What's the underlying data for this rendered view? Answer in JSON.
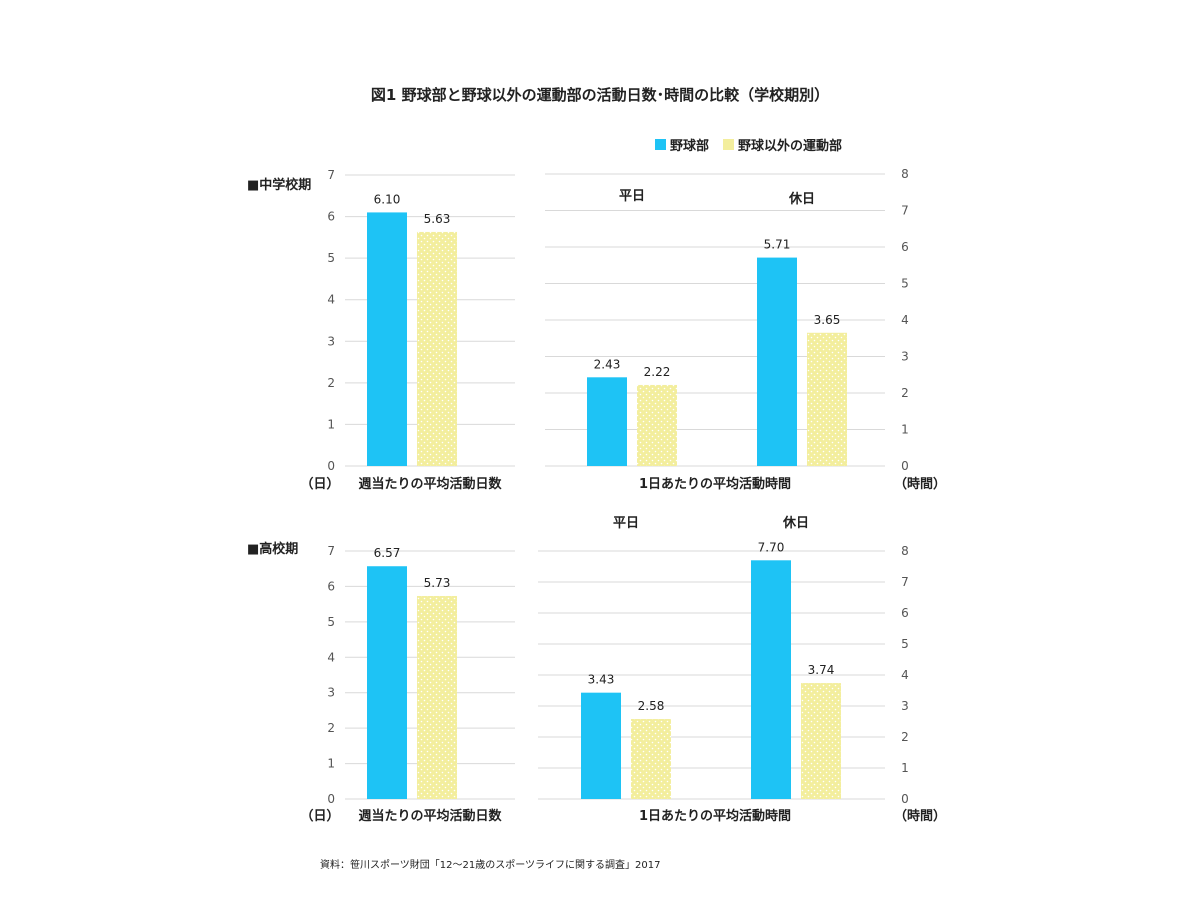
{
  "title": "図1  野球部と野球以外の運動部の活動日数･時間の比較（学校期別）",
  "source": "資料：笹川スポーツ財団「12～21歳のスポーツライフに関する調査」2017",
  "colors": {
    "baseball": "#1ec3f5",
    "other": "#f3ee9d",
    "other_dot": "#ffffff",
    "grid": "#d9d9d9"
  },
  "legend": [
    {
      "name": "野球部",
      "color": "#1ec3f5"
    },
    {
      "name": "野球以外の運動部",
      "color": "#f3ee9d"
    }
  ],
  "labels": {
    "junior_high": "■中学校期",
    "high_school": "■高校期",
    "days_unit": "（日）",
    "hours_unit": "（時間）",
    "days_axis": "週当たりの平均活動日数",
    "hours_axis": "1日あたりの平均活動時間"
  },
  "chart_data": [
    {
      "type": "bar",
      "panel": "中学校期",
      "xlabel": "週当たりの平均活動日数",
      "ylabel": "（日）",
      "ylim": [
        0,
        7
      ],
      "yticks": [
        0,
        1,
        2,
        3,
        4,
        5,
        6,
        7
      ],
      "grid": true,
      "series": [
        {
          "name": "野球部",
          "values": [
            6.1
          ],
          "labels": [
            "6.10"
          ]
        },
        {
          "name": "野球以外の運動部",
          "values": [
            5.63
          ],
          "labels": [
            "5.63"
          ]
        }
      ]
    },
    {
      "type": "bar",
      "panel": "中学校期",
      "xlabel": "1日あたりの平均活動時間",
      "ylabel": "（時間）",
      "ylim": [
        0,
        8
      ],
      "yticks": [
        0,
        1,
        2,
        3,
        4,
        5,
        6,
        7,
        8
      ],
      "grid": true,
      "legend": "top-right",
      "categories": [
        "平日",
        "休日"
      ],
      "series": [
        {
          "name": "野球部",
          "values": [
            2.43,
            5.71
          ],
          "labels": [
            "2.43",
            "5.71"
          ]
        },
        {
          "name": "野球以外の運動部",
          "values": [
            2.22,
            3.65
          ],
          "labels": [
            "2.22",
            "3.65"
          ]
        }
      ]
    },
    {
      "type": "bar",
      "panel": "高校期",
      "xlabel": "週当たりの平均活動日数",
      "ylabel": "（日）",
      "ylim": [
        0,
        7
      ],
      "yticks": [
        0,
        1,
        2,
        3,
        4,
        5,
        6,
        7
      ],
      "grid": true,
      "series": [
        {
          "name": "野球部",
          "values": [
            6.57
          ],
          "labels": [
            "6.57"
          ]
        },
        {
          "name": "野球以外の運動部",
          "values": [
            5.73
          ],
          "labels": [
            "5.73"
          ]
        }
      ]
    },
    {
      "type": "bar",
      "panel": "高校期",
      "xlabel": "1日あたりの平均活動時間",
      "ylabel": "（時間）",
      "ylim": [
        0,
        8
      ],
      "yticks": [
        0,
        1,
        2,
        3,
        4,
        5,
        6,
        7,
        8
      ],
      "grid": true,
      "categories": [
        "平日",
        "休日"
      ],
      "series": [
        {
          "name": "野球部",
          "values": [
            3.43,
            7.7
          ],
          "labels": [
            "3.43",
            "7.70"
          ]
        },
        {
          "name": "野球以外の運動部",
          "values": [
            2.58,
            3.74
          ],
          "labels": [
            "2.58",
            "3.74"
          ]
        }
      ]
    }
  ]
}
